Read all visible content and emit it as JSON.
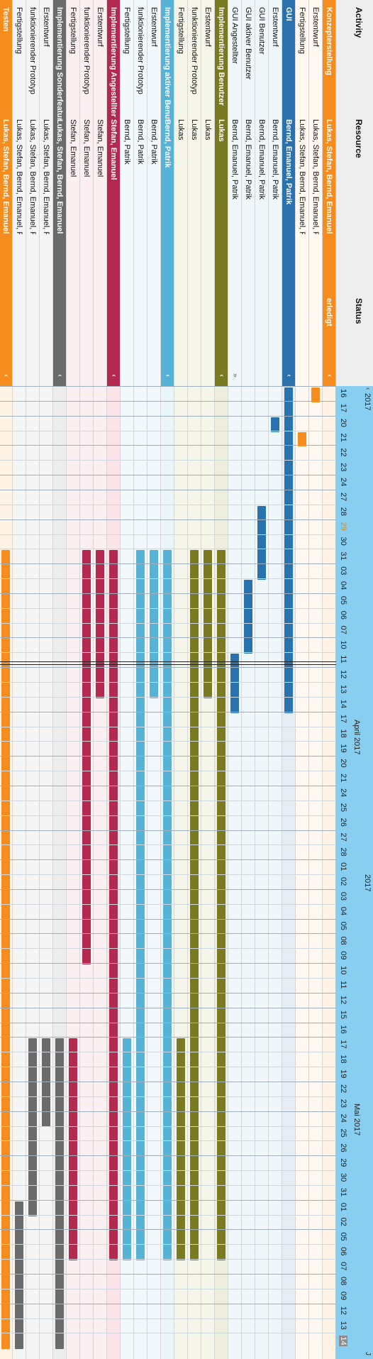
{
  "header": {
    "activity_label": "Activity",
    "resource_label": "Resource",
    "status_label": "Status",
    "year_left": "2017",
    "year_center": "2017",
    "month_april": "April 2017",
    "month_mai": "Mai 2017",
    "scroll_left": "‹",
    "scroll_right": "J",
    "days": [
      "16",
      "17",
      "20",
      "21",
      "22",
      "23",
      "24",
      "27",
      "28",
      "29",
      "30",
      "31",
      "03",
      "04",
      "05",
      "06",
      "07",
      "10",
      "11",
      "12",
      "13",
      "14",
      "17",
      "18",
      "19",
      "20",
      "21",
      "24",
      "25",
      "26",
      "27",
      "28",
      "01",
      "02",
      "03",
      "04",
      "05",
      "08",
      "09",
      "10",
      "11",
      "12",
      "15",
      "16",
      "17",
      "18",
      "19",
      "22",
      "23",
      "24",
      "25",
      "26",
      "29",
      "30",
      "31",
      "01",
      "02",
      "05",
      "06",
      "07",
      "08",
      "09",
      "12",
      "13",
      "14"
    ],
    "highlight_day_index": 9,
    "today_day_index": 64
  },
  "colors": {
    "orange": "#f78c1e",
    "blue": "#2a72ad",
    "olive": "#7a7a22",
    "lightblue": "#56b3d6",
    "crimson": "#b3294f",
    "gray": "#6b6b6b",
    "silver": "#cfcfcf",
    "header_bg": "#87cef0"
  },
  "rows": [
    {
      "activity": "Konzepterstellung",
      "resource": "Lukas, Stefan, Bernd, Emanuel, Patrik",
      "status": "erledigt",
      "type": "group",
      "color": "orange",
      "tint": "#fff3e6",
      "bars": []
    },
    {
      "activity": "Erstentwurf",
      "resource": "Lukas, Stefan, Bernd, Emanuel, Patrik",
      "status": "",
      "type": "sub",
      "color": "orange",
      "tint": "#fff8f0",
      "bars": [
        {
          "s": 0,
          "e": 1
        }
      ]
    },
    {
      "activity": "Fertigstellung",
      "resource": "Lukas, Stefan, Bernd, Emanuel, Patrik",
      "status": "",
      "type": "sub",
      "color": "orange",
      "tint": "#fff8f0",
      "bars": [
        {
          "s": 3,
          "e": 4
        }
      ]
    },
    {
      "activity": "GUI",
      "resource": "Bernd, Emanuel, Patrik",
      "status": "",
      "type": "group",
      "color": "blue",
      "tint": "#e6edf4",
      "bars": [
        {
          "s": 0,
          "e": 22
        }
      ]
    },
    {
      "activity": "Erstentwurf",
      "resource": "Bernd, Emanuel, Patrik",
      "status": "",
      "type": "sub",
      "color": "blue",
      "tint": "#f0f7fb",
      "bars": [
        {
          "s": 2,
          "e": 3
        }
      ]
    },
    {
      "activity": "GUI Benutzer",
      "resource": "Bernd, Emanuel, Patrik",
      "status": "",
      "type": "sub",
      "color": "blue",
      "tint": "#f0f7fb",
      "bars": [
        {
          "s": 8,
          "e": 13
        }
      ]
    },
    {
      "activity": "GUI aktiver Benutzer",
      "resource": "Bernd, Emanuel, Patrik",
      "status": "",
      "type": "sub",
      "color": "blue",
      "tint": "#f0f7fb",
      "bars": [
        {
          "s": 13,
          "e": 18
        }
      ]
    },
    {
      "activity": "GUI Angestellter",
      "resource": "Bernd, Emanuel, Patrik",
      "status": "",
      "type": "sub",
      "color": "blue",
      "tint": "#f0f7fb",
      "bars": [
        {
          "s": 18,
          "e": 22
        }
      ]
    },
    {
      "activity": "Implementierung Benutzer",
      "resource": "Lukas",
      "status": "",
      "type": "group",
      "color": "olive",
      "tint": "#eeeedf",
      "bars": [
        {
          "s": 11,
          "e": 59
        }
      ]
    },
    {
      "activity": "Erstentwurf",
      "resource": "Lukas",
      "status": "",
      "type": "sub",
      "color": "olive",
      "tint": "#f5f5ea",
      "bars": [
        {
          "s": 11,
          "e": 21
        }
      ]
    },
    {
      "activity": "funktionierender Prototyp",
      "resource": "Lukas",
      "status": "",
      "type": "sub",
      "color": "olive",
      "tint": "#f5f5ea",
      "bars": [
        {
          "s": 11,
          "e": 59
        }
      ]
    },
    {
      "activity": "Fertigstellung",
      "resource": "Lukas",
      "status": "",
      "type": "sub",
      "color": "olive",
      "tint": "#f5f5ea",
      "bars": [
        {
          "s": 44,
          "e": 59
        }
      ]
    },
    {
      "activity": "Implementierung aktiver Benutzer",
      "resource": "Bernd, Patrik",
      "status": "",
      "type": "group",
      "color": "lightblue",
      "tint": "#eaf5fa",
      "bars": [
        {
          "s": 11,
          "e": 59
        }
      ]
    },
    {
      "activity": "Erstentwurf",
      "resource": "Bernd, Patrik",
      "status": "",
      "type": "sub",
      "color": "lightblue",
      "tint": "#f2f9fc",
      "bars": [
        {
          "s": 11,
          "e": 21
        }
      ]
    },
    {
      "activity": "funktionierender Prototyp",
      "resource": "Bernd, Patrik",
      "status": "",
      "type": "sub",
      "color": "lightblue",
      "tint": "#f2f9fc",
      "bars": [
        {
          "s": 11,
          "e": 59
        }
      ]
    },
    {
      "activity": "Fertigstellung",
      "resource": "Bernd, Patrik",
      "status": "",
      "type": "sub",
      "color": "lightblue",
      "tint": "#f2f9fc",
      "bars": [
        {
          "s": 44,
          "e": 59
        }
      ]
    },
    {
      "activity": "Implementierung Angestellter",
      "resource": "Stefan, Emanuel",
      "status": "",
      "type": "group",
      "color": "crimson",
      "tint": "#fae4ea",
      "bars": [
        {
          "s": 11,
          "e": 59
        }
      ]
    },
    {
      "activity": "Erstentwurf",
      "resource": "Stefan, Emanuel",
      "status": "",
      "type": "sub",
      "color": "crimson",
      "tint": "#fbeff2",
      "bars": [
        {
          "s": 11,
          "e": 21
        }
      ]
    },
    {
      "activity": "funktionierender Prototyp",
      "resource": "Stefan, Emanuel",
      "status": "",
      "type": "sub",
      "color": "crimson",
      "tint": "#fbeff2",
      "bars": [
        {
          "s": 11,
          "e": 39
        }
      ]
    },
    {
      "activity": "Fertigstellung",
      "resource": "Stefan, Emanuel",
      "status": "",
      "type": "sub",
      "color": "crimson",
      "tint": "#fbeff2",
      "bars": [
        {
          "s": 44,
          "e": 59
        }
      ]
    },
    {
      "activity": "Implementierung Sonderfeature",
      "resource": "Lukas, Stefan, Bernd, Emanuel, Patrik",
      "status": "",
      "type": "group",
      "color": "gray",
      "tint": "#ededed",
      "bars": [
        {
          "s": 44,
          "e": 65
        }
      ]
    },
    {
      "activity": "Erstentwurf",
      "resource": "Lukas, Stefan, Bernd, Emanuel, Patrik",
      "status": "",
      "type": "sub",
      "color": "gray",
      "tint": "#f5f5f5",
      "bars": [
        {
          "s": 44,
          "e": 50
        }
      ]
    },
    {
      "activity": "funktionierender Prototyp",
      "resource": "Lukas, Stefan, Bernd, Emanuel, Patrik",
      "status": "",
      "type": "sub",
      "color": "gray",
      "tint": "#f5f5f5",
      "bars": [
        {
          "s": 44,
          "e": 56
        }
      ]
    },
    {
      "activity": "Fertigstellung",
      "resource": "Lukas, Stefan, Bernd, Emanuel, Patrik",
      "status": "",
      "type": "sub",
      "color": "gray",
      "tint": "#f5f5f5",
      "bars": [
        {
          "s": 55,
          "e": 65
        }
      ]
    },
    {
      "activity": "Testen",
      "resource": "Lukas, Stefan, Bernd, Emanuel, Patrik",
      "status": "",
      "type": "group",
      "color": "orange",
      "tint": "#fff3e6",
      "bars": [
        {
          "s": 11,
          "e": 65
        }
      ]
    }
  ]
}
